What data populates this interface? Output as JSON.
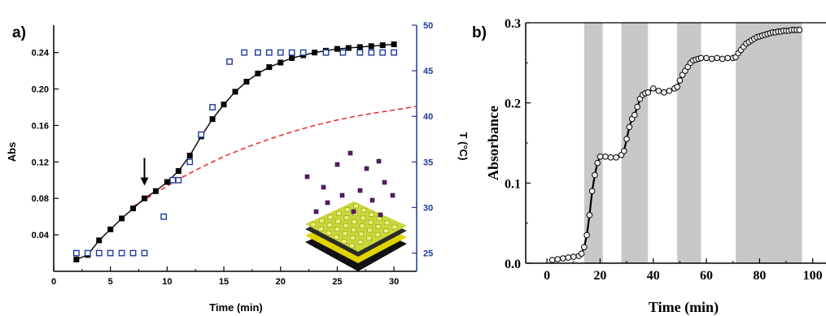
{
  "chart_data": [
    {
      "panel_label": "a)",
      "type": "scatter",
      "xlabel": "Time (min)",
      "ylabel": "Abs",
      "y2label": "T (°C)",
      "xlim": [
        0,
        32
      ],
      "ylim": [
        0.0,
        0.27
      ],
      "y2lim": [
        23,
        50
      ],
      "x_ticks": [
        0,
        5,
        10,
        15,
        20,
        25,
        30
      ],
      "y_ticks": [
        0.04,
        0.08,
        0.12,
        0.16,
        0.2,
        0.24
      ],
      "y2_ticks": [
        25,
        30,
        35,
        40,
        45,
        50
      ],
      "arrow_at_x": 8,
      "colors": {
        "abs": "#000000",
        "temp": "#1f3a9e",
        "fit": "#e8332b",
        "axis2": "#1f3a9e"
      },
      "series": [
        {
          "style": "black squares with line",
          "x": [
            2,
            3,
            4,
            5,
            6,
            7,
            8,
            9,
            10,
            11,
            12,
            13,
            14,
            15,
            16,
            17,
            18,
            19,
            20,
            21,
            22,
            23,
            24,
            25,
            26,
            27,
            28,
            29,
            30
          ],
          "y": [
            0.013,
            0.018,
            0.034,
            0.046,
            0.058,
            0.069,
            0.08,
            0.088,
            0.098,
            0.11,
            0.127,
            0.148,
            0.167,
            0.183,
            0.197,
            0.208,
            0.217,
            0.224,
            0.229,
            0.234,
            0.237,
            0.24,
            0.242,
            0.244,
            0.245,
            0.246,
            0.247,
            0.248,
            0.249
          ]
        },
        {
          "style": "open blue squares",
          "axis": "right",
          "x": [
            2,
            3,
            4,
            5,
            6,
            7,
            8,
            9.7,
            10.5,
            11,
            12,
            13,
            14,
            15.5,
            16.8,
            18,
            19,
            20,
            21,
            22,
            24,
            25.5,
            27,
            28,
            29,
            30
          ],
          "y": [
            25,
            25,
            25,
            25,
            25,
            25,
            25,
            29,
            33,
            33,
            35,
            38,
            41,
            46,
            47,
            47,
            47,
            47,
            47,
            47,
            47,
            47,
            47,
            47,
            47,
            47
          ]
        },
        {
          "style": "red dashed fit",
          "x": [
            7,
            9,
            11,
            13,
            15,
            17,
            19,
            21,
            23,
            25,
            27,
            29,
            31,
            32
          ],
          "y": [
            0.071,
            0.086,
            0.101,
            0.114,
            0.126,
            0.136,
            0.145,
            0.153,
            0.16,
            0.166,
            0.171,
            0.175,
            0.179,
            0.181
          ]
        }
      ]
    },
    {
      "panel_label": "b)",
      "type": "line",
      "xlabel": "Time (min)",
      "ylabel": "Absorbance",
      "xlim": [
        -8,
        105
      ],
      "ylim": [
        0.0,
        0.3
      ],
      "x_ticks": [
        0,
        20,
        40,
        60,
        80,
        100
      ],
      "y_ticks": [
        0.0,
        0.1,
        0.2,
        0.3
      ],
      "shaded_intervals": [
        [
          14,
          21
        ],
        [
          28,
          38
        ],
        [
          49,
          58
        ],
        [
          71,
          96
        ]
      ],
      "colors": {
        "shade": "#c8c8c8",
        "line": "#000000"
      },
      "series": [
        {
          "x": [
            2,
            4,
            6,
            8,
            10,
            12,
            13,
            14,
            15,
            16,
            17,
            18,
            19,
            20,
            22,
            24,
            26,
            28,
            29,
            30,
            31,
            32,
            33,
            34,
            35,
            36,
            37,
            38,
            40,
            42,
            44,
            46,
            48,
            49,
            50,
            51,
            52,
            53,
            54,
            55,
            56,
            57,
            58,
            60,
            62,
            64,
            66,
            68,
            70,
            71,
            72,
            73,
            74,
            75,
            76,
            77,
            78,
            79,
            80,
            81,
            82,
            83,
            84,
            85,
            86,
            87,
            88,
            89,
            90,
            91,
            92,
            93,
            94,
            95
          ],
          "y": [
            0.004,
            0.005,
            0.006,
            0.007,
            0.008,
            0.009,
            0.012,
            0.02,
            0.035,
            0.06,
            0.09,
            0.11,
            0.125,
            0.133,
            0.133,
            0.132,
            0.132,
            0.135,
            0.14,
            0.155,
            0.17,
            0.18,
            0.185,
            0.195,
            0.205,
            0.21,
            0.212,
            0.213,
            0.218,
            0.215,
            0.213,
            0.215,
            0.218,
            0.22,
            0.228,
            0.235,
            0.24,
            0.245,
            0.25,
            0.253,
            0.254,
            0.255,
            0.256,
            0.256,
            0.255,
            0.256,
            0.255,
            0.256,
            0.256,
            0.257,
            0.262,
            0.266,
            0.27,
            0.274,
            0.276,
            0.278,
            0.28,
            0.282,
            0.283,
            0.284,
            0.285,
            0.286,
            0.287,
            0.288,
            0.288,
            0.289,
            0.289,
            0.29,
            0.29,
            0.29,
            0.291,
            0.291,
            0.291,
            0.291
          ]
        }
      ]
    }
  ]
}
